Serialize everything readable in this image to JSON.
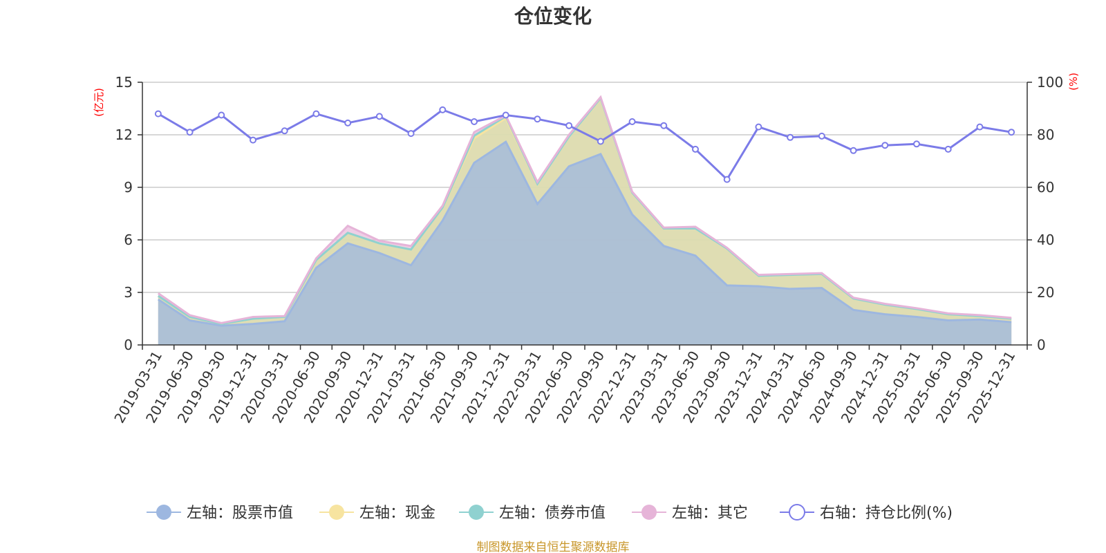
{
  "chart_data": {
    "type": "area",
    "title": "仓位变化",
    "left_axis_unit": "(亿元)",
    "right_axis_unit": "(%)",
    "left_ylim": [
      0,
      15
    ],
    "left_ticks": [
      "0",
      "3",
      "6",
      "9",
      "12",
      "15"
    ],
    "right_ylim": [
      0,
      100
    ],
    "right_ticks": [
      "0",
      "20",
      "40",
      "60",
      "80",
      "100"
    ],
    "categories": [
      "2019-03-31",
      "2019-06-30",
      "2019-09-30",
      "2019-12-31",
      "2020-03-31",
      "2020-06-30",
      "2020-09-30",
      "2020-12-31",
      "2021-03-31",
      "2021-06-30",
      "2021-09-30",
      "2021-12-31",
      "2022-03-31",
      "2022-06-30",
      "2022-09-30",
      "2022-12-31",
      "2023-03-31",
      "2023-06-30",
      "2023-09-30",
      "2023-12-31",
      "2024-03-31",
      "2024-06-30",
      "2024-09-30",
      "2024-12-31",
      "2025-03-31",
      "2025-06-30",
      "2025-09-30",
      "2025-12-31"
    ],
    "series": [
      {
        "name": "左轴：股票市值",
        "axis": "left",
        "kind": "stacked-area",
        "color": "#9db7e0",
        "values": [
          2.6,
          1.4,
          1.1,
          1.2,
          1.35,
          4.4,
          5.8,
          5.25,
          4.55,
          7.1,
          10.4,
          11.6,
          8.05,
          10.2,
          10.9,
          7.45,
          5.65,
          5.1,
          3.4,
          3.35,
          3.2,
          3.25,
          2.0,
          1.75,
          1.6,
          1.4,
          1.45,
          1.3
        ]
      },
      {
        "name": "左轴：现金",
        "axis": "left",
        "kind": "stacked-area",
        "color": "#f7e4a0",
        "values": [
          0.2,
          0.2,
          0.1,
          0.3,
          0.25,
          0.45,
          0.6,
          0.55,
          0.9,
          0.75,
          1.4,
          1.35,
          1.15,
          1.7,
          3.2,
          1.25,
          1.0,
          1.55,
          2.1,
          0.6,
          0.8,
          0.8,
          0.65,
          0.55,
          0.45,
          0.35,
          0.2,
          0.2
        ]
      },
      {
        "name": "左轴：债券市值",
        "axis": "left",
        "kind": "stacked-area",
        "color": "#8fd1d0",
        "values": [
          0,
          0,
          0,
          0,
          0,
          0,
          0,
          0,
          0,
          0,
          0.15,
          0.1,
          0,
          0,
          0,
          0,
          0,
          0,
          0,
          0,
          0,
          0,
          0,
          0,
          0,
          0,
          0,
          0
        ]
      },
      {
        "name": "左轴：其它",
        "axis": "left",
        "kind": "stacked-area",
        "color": "#e6b4d8",
        "values": [
          0.15,
          0.1,
          0.05,
          0.1,
          0.05,
          0.1,
          0.4,
          0.15,
          0.2,
          0.1,
          0.2,
          0.05,
          0.1,
          0.1,
          0.05,
          0.05,
          0.05,
          0.1,
          0.05,
          0.05,
          0.05,
          0.05,
          0.05,
          0.05,
          0.05,
          0.05,
          0.05,
          0.05
        ]
      },
      {
        "name": "右轴：持仓比例(%)",
        "axis": "right",
        "kind": "line",
        "color": "#7b7be8",
        "values": [
          88,
          81,
          87.5,
          78,
          81.5,
          88,
          84.5,
          87,
          80.5,
          89.5,
          85,
          87.5,
          86,
          83.5,
          77.5,
          85,
          83.5,
          74.5,
          63,
          83,
          79,
          79.5,
          74,
          76,
          76.5,
          74.5,
          83,
          81
        ]
      }
    ],
    "legend_position": "bottom",
    "grid": true
  },
  "footer": {
    "source": "制图数据来自恒生聚源数据库"
  }
}
